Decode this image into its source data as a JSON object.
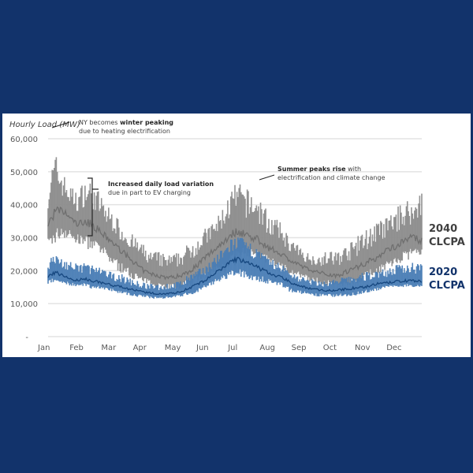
{
  "chart_data": {
    "type": "area",
    "title": "",
    "ylabel": "Hourly Load (MW)",
    "xlabel": "",
    "ylim": [
      0,
      60000
    ],
    "yticks": [
      {
        "value": 0,
        "label": "-"
      },
      {
        "value": 10000,
        "label": "10,000"
      },
      {
        "value": 20000,
        "label": "20,000"
      },
      {
        "value": 30000,
        "label": "30,000"
      },
      {
        "value": 40000,
        "label": "40,000"
      },
      {
        "value": 50000,
        "label": "50,000"
      },
      {
        "value": 60000,
        "label": "60,000"
      }
    ],
    "xticks": [
      "Jan",
      "Feb",
      "Mar",
      "Apr",
      "May",
      "Jun",
      "Jul",
      "Aug",
      "Sep",
      "Oct",
      "Nov",
      "Dec"
    ],
    "grid": true,
    "legend_placement": "right",
    "x_unit": "week of year",
    "series": [
      {
        "name": "2040 CLCPA",
        "label_line1": "2040",
        "label_line2": "CLCPA",
        "color": "#8c8c8c",
        "line_color": "#6f6f6f",
        "weekly_low": [
          26000,
          28000,
          30000,
          29000,
          28000,
          27000,
          26000,
          25000,
          23000,
          21000,
          19000,
          18000,
          17000,
          16000,
          15500,
          15000,
          14500,
          14500,
          14500,
          15000,
          15500,
          16000,
          17000,
          18000,
          19000,
          21000,
          22000,
          23000,
          24000,
          23000,
          22000,
          21000,
          20000,
          19000,
          18000,
          17000,
          16500,
          16000,
          15500,
          15000,
          15000,
          15500,
          16000,
          17000,
          18000,
          19000,
          20000,
          21000,
          22000,
          23000,
          24000,
          25000
        ],
        "weekly_high": [
          48000,
          56000,
          50000,
          46000,
          44000,
          48000,
          47000,
          44000,
          40000,
          38000,
          34000,
          32000,
          30000,
          28000,
          26000,
          26000,
          25000,
          25000,
          26000,
          28000,
          30000,
          32000,
          34000,
          36000,
          40000,
          45000,
          47000,
          45000,
          44000,
          42000,
          38000,
          36000,
          34000,
          30000,
          28000,
          26000,
          25000,
          25000,
          26000,
          26000,
          27000,
          28000,
          30000,
          32000,
          34000,
          35000,
          36000,
          38000,
          40000,
          42000,
          40000,
          49000
        ],
        "weekly_mid": [
          34000,
          38000,
          38000,
          36000,
          34000,
          35000,
          34000,
          32000,
          30000,
          28000,
          26000,
          24000,
          22000,
          20000,
          19000,
          18500,
          18000,
          18000,
          18500,
          19500,
          21000,
          23000,
          25000,
          27000,
          29000,
          31000,
          32000,
          31000,
          30000,
          29000,
          27000,
          26000,
          25000,
          23000,
          22000,
          21000,
          20000,
          19500,
          19000,
          18500,
          19000,
          20000,
          21000,
          22000,
          23000,
          24000,
          26000,
          27000,
          28000,
          30000,
          30000,
          29000
        ]
      },
      {
        "name": "2020 CLCPA",
        "label_line1": "2020",
        "label_line2": "CLCPA",
        "color": "#4a7db5",
        "line_color": "#16477f",
        "weekly_low": [
          16000,
          16500,
          16000,
          15500,
          15000,
          15000,
          14500,
          14500,
          14000,
          13500,
          13000,
          12500,
          12000,
          11800,
          11500,
          11500,
          11500,
          11800,
          12000,
          12500,
          13000,
          14000,
          15000,
          16000,
          17000,
          17500,
          18000,
          17500,
          17000,
          16500,
          16000,
          15500,
          15000,
          13500,
          13000,
          12500,
          12000,
          12000,
          12000,
          12000,
          12000,
          12200,
          12500,
          13000,
          13500,
          14000,
          14500,
          15000,
          15000,
          15000,
          15000,
          15000
        ],
        "weekly_high": [
          24000,
          25000,
          24000,
          23000,
          22000,
          23000,
          22000,
          21000,
          20000,
          19500,
          19000,
          18000,
          17000,
          16500,
          16000,
          16000,
          16000,
          16500,
          17000,
          18500,
          20000,
          21000,
          23000,
          25000,
          27000,
          30000,
          31000,
          29000,
          28000,
          26000,
          24000,
          23000,
          22000,
          20000,
          19000,
          18000,
          17500,
          17000,
          17000,
          17500,
          18000,
          18500,
          19000,
          19500,
          20000,
          20500,
          21000,
          21500,
          22000,
          22500,
          23000,
          24000
        ],
        "weekly_mid": [
          18000,
          19500,
          18500,
          17500,
          17000,
          17500,
          17000,
          16500,
          16000,
          15500,
          15000,
          14500,
          14000,
          13500,
          13200,
          13000,
          13000,
          13200,
          13500,
          14500,
          15500,
          16500,
          18000,
          19500,
          21000,
          23000,
          23500,
          22500,
          21500,
          20500,
          19500,
          18500,
          18000,
          16500,
          15500,
          15000,
          14500,
          14200,
          14000,
          14000,
          14200,
          14500,
          14800,
          15000,
          15500,
          16000,
          16200,
          16500,
          16800,
          17000,
          17000,
          16500
        ]
      }
    ],
    "annotations": [
      {
        "bold": "",
        "text1": "NY becomes ",
        "bold1": "winter peaking",
        "line2": "due to heating electrification"
      },
      {
        "bold1": "Increased daily load variation",
        "text1": "",
        "line2": "due in part to EV charging"
      },
      {
        "bold1": "Summer peaks rise",
        "text1": " with",
        "line2": "electrification and climate change"
      }
    ]
  }
}
